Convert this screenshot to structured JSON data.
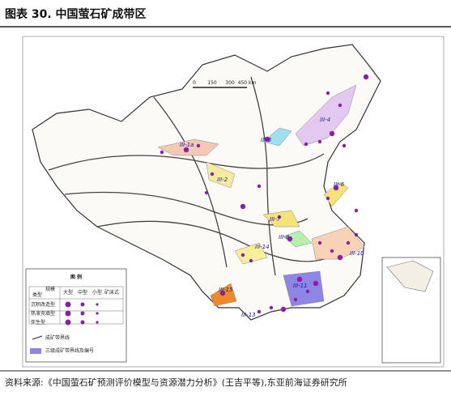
{
  "header": {
    "title": "图表 30. 中国萤石矿成带区"
  },
  "map": {
    "scale": [
      "0",
      "150",
      "300",
      "450 km"
    ],
    "zones": [
      "III-1a",
      "III-2",
      "III-3",
      "III-4",
      "III-6",
      "III-7",
      "III-8",
      "III-10",
      "III-11",
      "III-13",
      "III-14",
      "III-15"
    ],
    "legend": {
      "title": "图 例",
      "corner": "规模",
      "type_header": "类型",
      "columns": [
        "大型",
        "中型",
        "小型",
        "矿床式"
      ],
      "rows": [
        "沉积改造型",
        "热液充填型",
        "伴生型"
      ],
      "lines": [
        "成矿带界线",
        "三级成矿带界线及编号"
      ]
    }
  },
  "footer": {
    "source": "资料来源:《中国萤石矿预测评价模型与资源潜力分析》(王吉平等),东亚前海证券研究所"
  }
}
